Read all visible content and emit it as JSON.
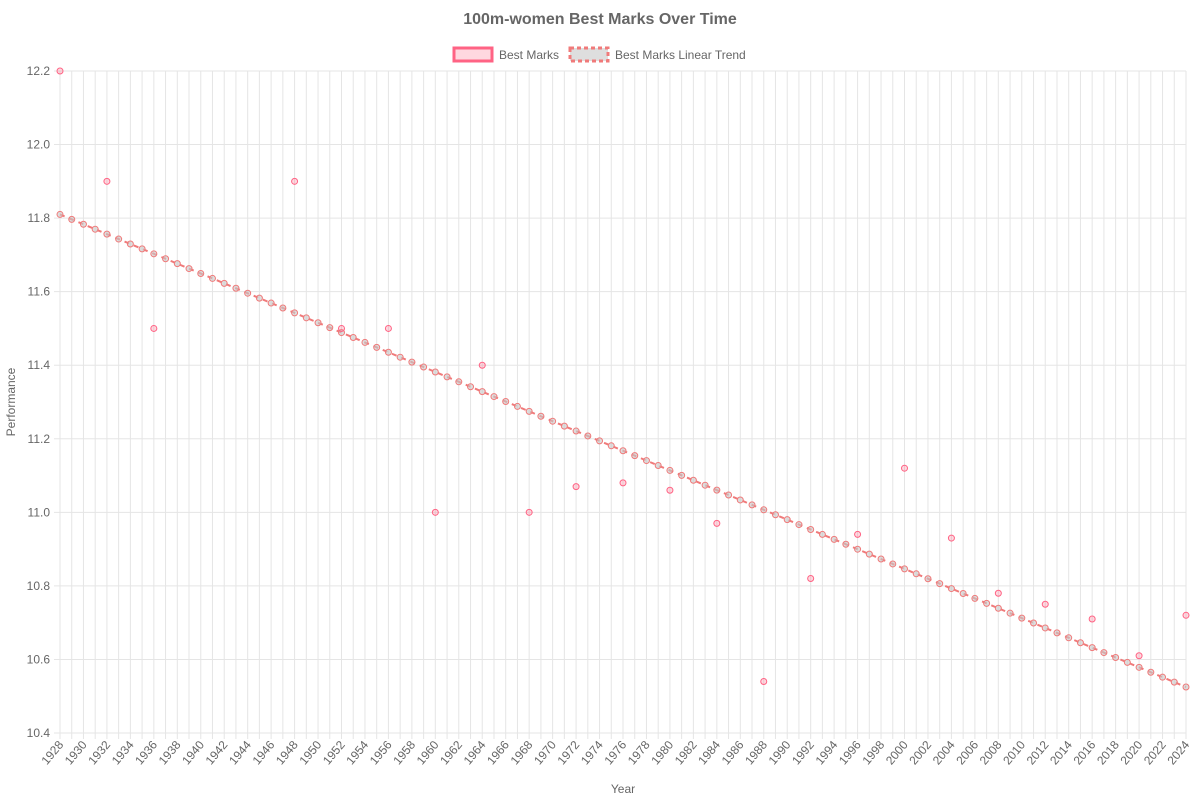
{
  "chart_data": {
    "type": "scatter",
    "title": "100m-women Best Marks Over Time",
    "xlabel": "Year",
    "ylabel": "Performance",
    "xlim": [
      1928,
      2024
    ],
    "ylim": [
      10.4,
      12.2
    ],
    "y_ticks": [
      "10.4",
      "10.6",
      "10.8",
      "11.0",
      "11.2",
      "11.4",
      "11.6",
      "11.8",
      "12.0",
      "12.2"
    ],
    "legend_position": "top-center",
    "grid": true,
    "colors": {
      "marks": "#ff6384",
      "marks_fill": "rgba(255,99,132,0.25)",
      "trend": "#f07a7a",
      "trend_fill": "rgba(200,200,200,0.6)"
    },
    "series": [
      {
        "name": "Best Marks",
        "points": [
          [
            1928,
            12.2
          ],
          [
            1932,
            11.9
          ],
          [
            1936,
            11.5
          ],
          [
            1948,
            11.9
          ],
          [
            1952,
            11.5
          ],
          [
            1956,
            11.5
          ],
          [
            1960,
            11.0
          ],
          [
            1964,
            11.4
          ],
          [
            1968,
            11.0
          ],
          [
            1972,
            11.07
          ],
          [
            1976,
            11.08
          ],
          [
            1980,
            11.06
          ],
          [
            1984,
            10.97
          ],
          [
            1988,
            10.54
          ],
          [
            1992,
            10.82
          ],
          [
            1996,
            10.94
          ],
          [
            2000,
            11.12
          ],
          [
            2004,
            10.93
          ],
          [
            2008,
            10.78
          ],
          [
            2012,
            10.75
          ],
          [
            2016,
            10.71
          ],
          [
            2020,
            10.61
          ],
          [
            2024,
            10.72
          ]
        ]
      },
      {
        "name": "Best Marks Linear Trend",
        "line": {
          "x_start": 1928,
          "y_start": 11.81,
          "x_end": 2024,
          "y_end": 10.525,
          "step": 1
        }
      }
    ]
  }
}
